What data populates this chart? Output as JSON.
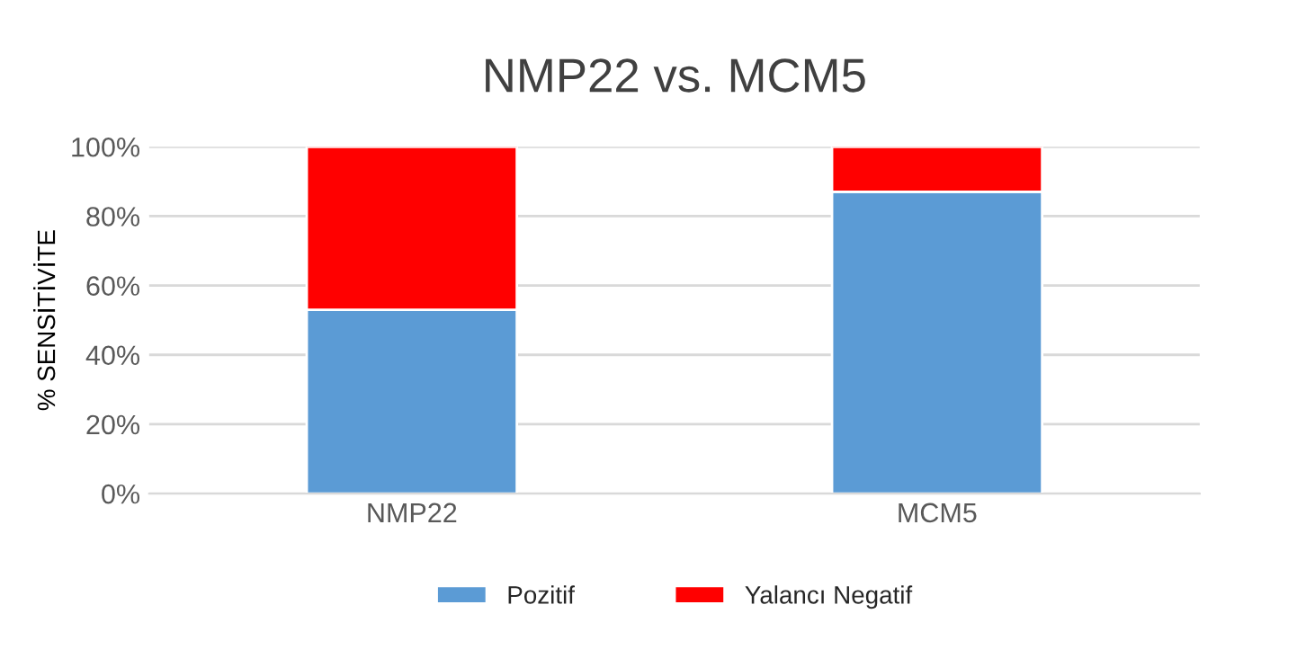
{
  "chart_data": {
    "type": "bar",
    "title": "NMP22 vs. MCM5",
    "ylabel": "% SENSİTİVİTE",
    "categories": [
      "NMP22",
      "MCM5"
    ],
    "stacked": true,
    "series": [
      {
        "name": "Pozitif",
        "color": "#5b9bd5",
        "values": [
          53,
          87
        ]
      },
      {
        "name": "Yalancı Negatif",
        "color": "#ff0000",
        "values": [
          47,
          13
        ]
      }
    ],
    "ylim": [
      0,
      100
    ],
    "yticks": [
      {
        "value": 0,
        "label": "0%"
      },
      {
        "value": 20,
        "label": "20%"
      },
      {
        "value": 40,
        "label": "40%"
      },
      {
        "value": 60,
        "label": "60%"
      },
      {
        "value": 80,
        "label": "80%"
      },
      {
        "value": 100,
        "label": "100%"
      }
    ],
    "grid": "y",
    "legend": "bottom"
  }
}
